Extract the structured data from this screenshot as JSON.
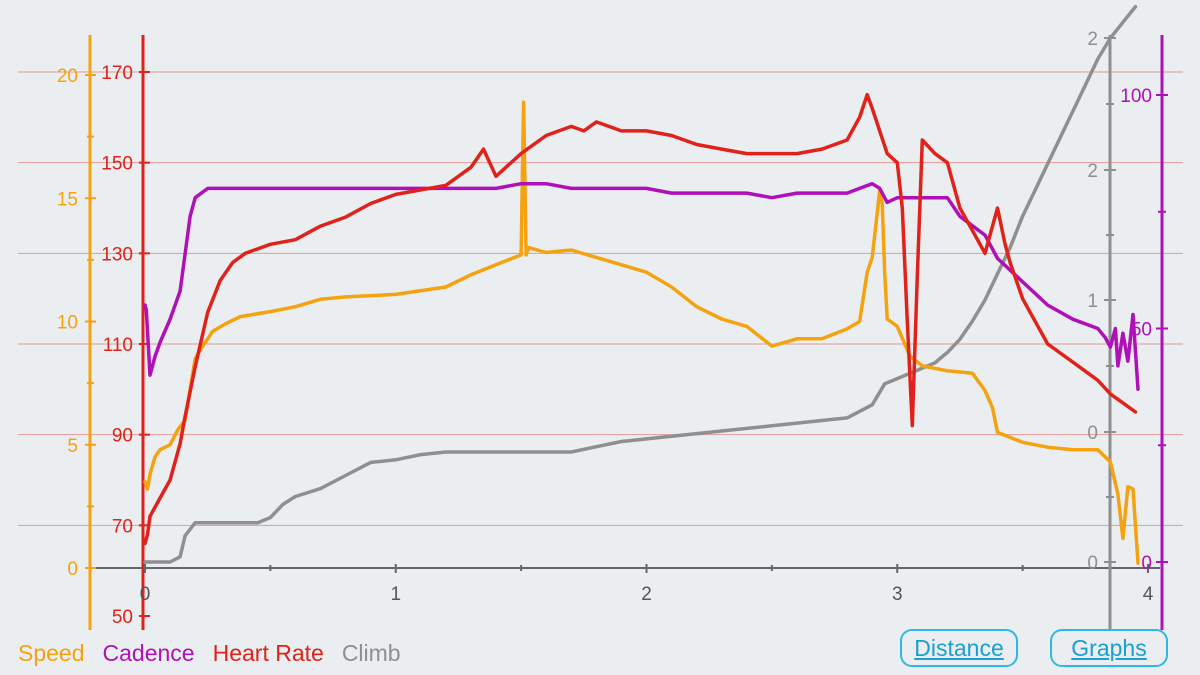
{
  "colors": {
    "speed": "#f5a20f",
    "cadence": "#b010b8",
    "heart_rate": "#e0221a",
    "climb": "#8f8f8f",
    "grid": "#e39a96",
    "x_axis": "#666666",
    "button": "#2fb8e3"
  },
  "legend": {
    "speed": "Speed",
    "cadence": "Cadence",
    "heart_rate": "Heart Rate",
    "climb": "Climb"
  },
  "buttons": {
    "distance": "Distance",
    "graphs": "Graphs"
  },
  "chart_data": {
    "type": "line",
    "title": "",
    "xlim": [
      0,
      4
    ],
    "x_ticks": [
      "0",
      "1",
      "2",
      "3",
      "4"
    ],
    "grid": "horizontal lines at heart-rate ticks",
    "legend_placement": "bottom-left",
    "axes": {
      "speed": {
        "ticks": [
          "0",
          "5",
          "10",
          "15",
          "20"
        ],
        "ylim": [
          0,
          20
        ]
      },
      "heart_rate": {
        "ticks": [
          "50",
          "70",
          "90",
          "110",
          "130",
          "150",
          "170"
        ],
        "ylim": [
          50,
          170
        ]
      },
      "climb": {
        "ticks": [
          "0",
          "0",
          "1",
          "2",
          "2"
        ]
      },
      "cadence": {
        "ticks": [
          "0",
          "50",
          "100"
        ],
        "ylim": [
          0,
          100
        ]
      }
    },
    "series": [
      {
        "name": "Speed",
        "axis": "speed",
        "x": [
          0,
          0.01,
          0.02,
          0.04,
          0.06,
          0.1,
          0.13,
          0.16,
          0.2,
          0.23,
          0.27,
          0.32,
          0.38,
          0.5,
          0.6,
          0.7,
          0.8,
          1.0,
          1.2,
          1.3,
          1.4,
          1.5,
          1.51,
          1.52,
          1.53,
          1.6,
          1.7,
          1.8,
          2.0,
          2.1,
          2.2,
          2.3,
          2.4,
          2.5,
          2.6,
          2.7,
          2.8,
          2.85,
          2.88,
          2.9,
          2.93,
          2.94,
          2.95,
          2.96,
          3.0,
          3.05,
          3.1,
          3.2,
          3.3,
          3.35,
          3.38,
          3.4,
          3.5,
          3.6,
          3.7,
          3.8,
          3.83,
          3.85,
          3.88,
          3.9,
          3.92,
          3.94,
          3.96
        ],
        "values": [
          3.5,
          3.2,
          3.8,
          4.5,
          4.8,
          5.0,
          5.6,
          6.0,
          8.5,
          9.0,
          9.6,
          9.9,
          10.2,
          10.4,
          10.6,
          10.9,
          11.0,
          11.1,
          11.4,
          11.9,
          12.3,
          12.7,
          18.9,
          12.7,
          13.0,
          12.8,
          12.9,
          12.6,
          12.0,
          11.4,
          10.6,
          10.1,
          9.8,
          9.0,
          9.3,
          9.3,
          9.7,
          10.0,
          12.0,
          12.6,
          15.3,
          14.8,
          12.0,
          10.1,
          9.8,
          8.6,
          8.2,
          8.0,
          7.9,
          7.2,
          6.5,
          5.5,
          5.1,
          4.9,
          4.8,
          4.8,
          4.5,
          4.3,
          3.0,
          1.2,
          3.3,
          3.2,
          0.2
        ]
      },
      {
        "name": "Cadence",
        "axis": "cadence",
        "x": [
          0,
          0.005,
          0.02,
          0.04,
          0.06,
          0.1,
          0.14,
          0.16,
          0.18,
          0.2,
          0.25,
          0.3,
          0.5,
          0.7,
          0.9,
          1.1,
          1.3,
          1.35,
          1.4,
          1.5,
          1.6,
          1.7,
          1.8,
          2.0,
          2.1,
          2.2,
          2.3,
          2.4,
          2.5,
          2.6,
          2.7,
          2.8,
          2.85,
          2.9,
          2.93,
          2.96,
          3.0,
          3.1,
          3.2,
          3.25,
          3.3,
          3.35,
          3.4,
          3.5,
          3.6,
          3.7,
          3.8,
          3.83,
          3.85,
          3.87,
          3.88,
          3.9,
          3.92,
          3.94,
          3.96
        ],
        "values": [
          55,
          54,
          40,
          44,
          47,
          52,
          58,
          66,
          74,
          78,
          80,
          80,
          80,
          80,
          80,
          80,
          80,
          80,
          80,
          81,
          81,
          80,
          80,
          80,
          79,
          79,
          79,
          79,
          78,
          79,
          79,
          79,
          80,
          81,
          80,
          77,
          78,
          78,
          78,
          74,
          72,
          70,
          65,
          60,
          55,
          52,
          50,
          48,
          46,
          50,
          42,
          49,
          43,
          53,
          37
        ]
      },
      {
        "name": "Heart Rate",
        "axis": "heart_rate",
        "x": [
          0,
          0.01,
          0.02,
          0.04,
          0.06,
          0.1,
          0.14,
          0.16,
          0.2,
          0.25,
          0.3,
          0.35,
          0.4,
          0.5,
          0.6,
          0.7,
          0.8,
          0.9,
          1.0,
          1.1,
          1.2,
          1.25,
          1.3,
          1.35,
          1.4,
          1.5,
          1.6,
          1.7,
          1.75,
          1.8,
          1.85,
          1.9,
          2.0,
          2.1,
          2.2,
          2.3,
          2.4,
          2.5,
          2.6,
          2.7,
          2.8,
          2.85,
          2.88,
          2.9,
          2.93,
          2.96,
          3.0,
          3.02,
          3.04,
          3.06,
          3.08,
          3.1,
          3.15,
          3.2,
          3.25,
          3.3,
          3.35,
          3.4,
          3.43,
          3.45,
          3.5,
          3.6,
          3.7,
          3.8,
          3.85,
          3.9,
          3.95
        ],
        "values": [
          66,
          68,
          72,
          74,
          76,
          80,
          88,
          94,
          105,
          117,
          124,
          128,
          130,
          132,
          133,
          136,
          138,
          141,
          143,
          144,
          145,
          147,
          149,
          153,
          147,
          152,
          156,
          158,
          157,
          159,
          158,
          157,
          157,
          156,
          154,
          153,
          152,
          152,
          152,
          153,
          155,
          160,
          165,
          162,
          157,
          152,
          150,
          140,
          115,
          92,
          125,
          155,
          152,
          150,
          140,
          135,
          130,
          140,
          132,
          128,
          120,
          110,
          106,
          102,
          99,
          97,
          95
        ]
      },
      {
        "name": "Climb",
        "axis": "climb",
        "x": [
          0,
          0.05,
          0.1,
          0.14,
          0.16,
          0.2,
          0.3,
          0.45,
          0.5,
          0.55,
          0.6,
          0.7,
          0.8,
          0.9,
          1.0,
          1.05,
          1.1,
          1.2,
          1.3,
          1.5,
          1.7,
          1.8,
          1.9,
          2.0,
          2.1,
          2.2,
          2.3,
          2.4,
          2.5,
          2.6,
          2.7,
          2.8,
          2.9,
          2.95,
          3.0,
          3.05,
          3.1,
          3.15,
          3.2,
          3.25,
          3.3,
          3.35,
          3.4,
          3.45,
          3.5,
          3.55,
          3.6,
          3.65,
          3.7,
          3.75,
          3.8,
          3.85,
          3.9,
          3.95
        ],
        "values": [
          0.0,
          0.0,
          0.0,
          0.02,
          0.1,
          0.15,
          0.15,
          0.15,
          0.17,
          0.22,
          0.25,
          0.28,
          0.33,
          0.38,
          0.39,
          0.4,
          0.41,
          0.42,
          0.42,
          0.42,
          0.42,
          0.44,
          0.46,
          0.47,
          0.48,
          0.49,
          0.5,
          0.51,
          0.52,
          0.53,
          0.54,
          0.55,
          0.6,
          0.68,
          0.7,
          0.72,
          0.74,
          0.76,
          0.8,
          0.85,
          0.92,
          1.0,
          1.1,
          1.2,
          1.32,
          1.42,
          1.52,
          1.62,
          1.72,
          1.82,
          1.92,
          2.0,
          2.06,
          2.12
        ]
      }
    ]
  }
}
